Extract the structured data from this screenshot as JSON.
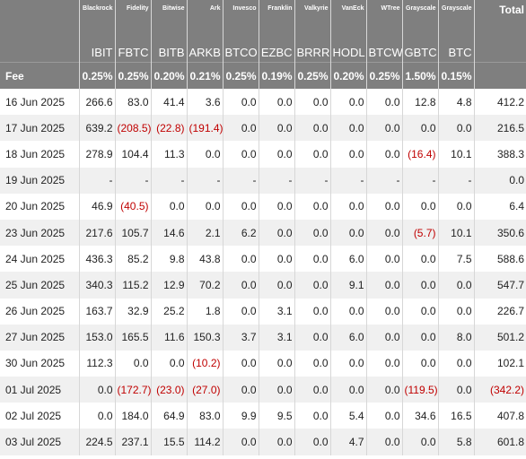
{
  "issuers": [
    "Blackrock",
    "Fidelity",
    "Bitwise",
    "Ark",
    "Invesco",
    "Franklin",
    "Valkyrie",
    "VanEck",
    "WTree",
    "Grayscale",
    "Grayscale"
  ],
  "total_label": "Total",
  "tickers": [
    "IBIT",
    "FBTC",
    "BITB",
    "ARKB",
    "BTCO",
    "EZBC",
    "BRRR",
    "HODL",
    "BTCW",
    "GBTC",
    "BTC"
  ],
  "fee_label": "Fee",
  "fees": [
    "0.25%",
    "0.25%",
    "0.20%",
    "0.21%",
    "0.25%",
    "0.19%",
    "0.25%",
    "0.20%",
    "0.25%",
    "1.50%",
    "0.15%"
  ],
  "rows": [
    {
      "date": "16 Jun 2025",
      "values": [
        "266.6",
        "83.0",
        "41.4",
        "3.6",
        "0.0",
        "0.0",
        "0.0",
        "0.0",
        "0.0",
        "12.8",
        "4.8"
      ],
      "total": "412.2"
    },
    {
      "date": "17 Jun 2025",
      "values": [
        "639.2",
        "(208.5)",
        "(22.8)",
        "(191.4)",
        "0.0",
        "0.0",
        "0.0",
        "0.0",
        "0.0",
        "0.0",
        "0.0"
      ],
      "total": "216.5"
    },
    {
      "date": "18 Jun 2025",
      "values": [
        "278.9",
        "104.4",
        "11.3",
        "0.0",
        "0.0",
        "0.0",
        "0.0",
        "0.0",
        "0.0",
        "(16.4)",
        "10.1"
      ],
      "total": "388.3"
    },
    {
      "date": "19 Jun 2025",
      "values": [
        "-",
        "-",
        "-",
        "-",
        "-",
        "-",
        "-",
        "-",
        "-",
        "-",
        "-"
      ],
      "total": "0.0"
    },
    {
      "date": "20 Jun 2025",
      "values": [
        "46.9",
        "(40.5)",
        "0.0",
        "0.0",
        "0.0",
        "0.0",
        "0.0",
        "0.0",
        "0.0",
        "0.0",
        "0.0"
      ],
      "total": "6.4"
    },
    {
      "date": "23 Jun 2025",
      "values": [
        "217.6",
        "105.7",
        "14.6",
        "2.1",
        "6.2",
        "0.0",
        "0.0",
        "0.0",
        "0.0",
        "(5.7)",
        "10.1"
      ],
      "total": "350.6"
    },
    {
      "date": "24 Jun 2025",
      "values": [
        "436.3",
        "85.2",
        "9.8",
        "43.8",
        "0.0",
        "0.0",
        "0.0",
        "6.0",
        "0.0",
        "0.0",
        "7.5"
      ],
      "total": "588.6"
    },
    {
      "date": "25 Jun 2025",
      "values": [
        "340.3",
        "115.2",
        "12.9",
        "70.2",
        "0.0",
        "0.0",
        "0.0",
        "9.1",
        "0.0",
        "0.0",
        "0.0"
      ],
      "total": "547.7"
    },
    {
      "date": "26 Jun 2025",
      "values": [
        "163.7",
        "32.9",
        "25.2",
        "1.8",
        "0.0",
        "3.1",
        "0.0",
        "0.0",
        "0.0",
        "0.0",
        "0.0"
      ],
      "total": "226.7"
    },
    {
      "date": "27 Jun 2025",
      "values": [
        "153.0",
        "165.5",
        "11.6",
        "150.3",
        "3.7",
        "3.1",
        "0.0",
        "6.0",
        "0.0",
        "0.0",
        "8.0"
      ],
      "total": "501.2"
    },
    {
      "date": "30 Jun 2025",
      "values": [
        "112.3",
        "0.0",
        "0.0",
        "(10.2)",
        "0.0",
        "0.0",
        "0.0",
        "0.0",
        "0.0",
        "0.0",
        "0.0"
      ],
      "total": "102.1"
    },
    {
      "date": "01 Jul 2025",
      "values": [
        "0.0",
        "(172.7)",
        "(23.0)",
        "(27.0)",
        "0.0",
        "0.0",
        "0.0",
        "0.0",
        "0.0",
        "(119.5)",
        "0.0"
      ],
      "total": "(342.2)"
    },
    {
      "date": "02 Jul 2025",
      "values": [
        "0.0",
        "184.0",
        "64.9",
        "83.0",
        "9.9",
        "9.5",
        "0.0",
        "5.4",
        "0.0",
        "34.6",
        "16.5"
      ],
      "total": "407.8"
    },
    {
      "date": "03 Jul 2025",
      "values": [
        "224.5",
        "237.1",
        "15.5",
        "114.2",
        "0.0",
        "0.0",
        "0.0",
        "4.7",
        "0.0",
        "0.0",
        "5.8"
      ],
      "total": "601.8"
    }
  ]
}
